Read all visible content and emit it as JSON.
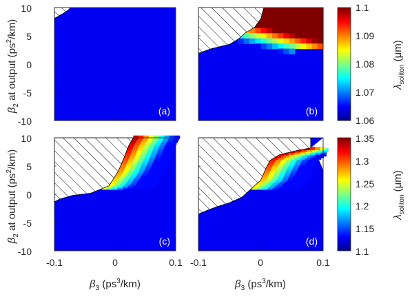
{
  "chart_data": [
    {
      "type": "heatmap",
      "panel_label": "(a)",
      "xlim": [
        -0.1,
        0.1
      ],
      "ylim": [
        -10,
        10
      ],
      "colorbar_range": [
        1.06,
        1.1
      ],
      "description_of_field": "nearly uniform 1.06 everywhere; small hatched region in the top-left corner",
      "hatched_boundary": [
        [
          -0.1,
          8.1
        ],
        [
          -0.093,
          8.5
        ],
        [
          -0.085,
          9.0
        ],
        [
          -0.078,
          9.5
        ],
        [
          -0.073,
          10.0
        ]
      ],
      "color_field": "flat",
      "base_value": 1.06
    },
    {
      "type": "heatmap",
      "panel_label": "(b)",
      "xlim": [
        -0.1,
        0.1
      ],
      "ylim": [
        -10,
        10
      ],
      "colorbar_range": [
        1.06,
        1.1
      ],
      "hatched_boundary": [
        [
          -0.1,
          1.9
        ],
        [
          -0.08,
          2.7
        ],
        [
          -0.05,
          3.5
        ],
        [
          -0.035,
          4.5
        ],
        [
          -0.025,
          5.5
        ],
        [
          -0.01,
          6.5
        ],
        [
          0.0,
          8.0
        ],
        [
          0.005,
          10.0
        ]
      ],
      "color_field": "wedge",
      "base_value": 1.06
    },
    {
      "type": "heatmap",
      "panel_label": "(c)",
      "xlim": [
        -0.1,
        0.1
      ],
      "ylim": [
        -10,
        10
      ],
      "colorbar_range": [
        1.1,
        1.35
      ],
      "hatched_boundary": [
        [
          -0.1,
          -1.3
        ],
        [
          -0.09,
          -0.8
        ],
        [
          -0.07,
          -0.2
        ],
        [
          -0.04,
          0.2
        ],
        [
          -0.01,
          1.5
        ],
        [
          0.005,
          4.0
        ],
        [
          0.015,
          6.5
        ],
        [
          0.022,
          8.5
        ],
        [
          0.03,
          10.0
        ]
      ],
      "outer_boundary": [
        [
          0.01,
          10.0
        ],
        [
          0.06,
          10.0
        ],
        [
          0.08,
          9.8
        ],
        [
          0.1,
          9.0
        ]
      ],
      "color_field": "band",
      "base_value": 1.1
    },
    {
      "type": "heatmap",
      "panel_label": "(d)",
      "xlim": [
        -0.1,
        0.1
      ],
      "ylim": [
        -10,
        10
      ],
      "colorbar_range": [
        1.1,
        1.35
      ],
      "hatched_boundary": [
        [
          -0.1,
          -3.5
        ],
        [
          -0.085,
          -2.8
        ],
        [
          -0.07,
          -2.2
        ],
        [
          -0.05,
          -1.5
        ],
        [
          -0.03,
          -0.5
        ],
        [
          -0.02,
          0.5
        ],
        [
          0.0,
          2.5
        ],
        [
          0.008,
          4.5
        ],
        [
          0.015,
          6.0
        ],
        [
          0.03,
          7.0
        ],
        [
          0.06,
          7.8
        ],
        [
          0.08,
          8.2
        ]
      ],
      "outer_boundary": [
        [
          0.05,
          8.0
        ],
        [
          0.07,
          8.3
        ],
        [
          0.09,
          7.0
        ],
        [
          0.1,
          4.3
        ]
      ],
      "color_field": "band",
      "base_value": 1.1
    }
  ],
  "axes": {
    "xlabel_prefix": "β",
    "xlabel_sub": "3",
    "xlabel_rest": " (ps",
    "xlabel_sup": "3",
    "xlabel_end": "/km)",
    "ylabel_prefix": "β",
    "ylabel_sub": "2",
    "ylabel_rest": " at output (ps",
    "ylabel_sup": "2",
    "ylabel_end": "/km)",
    "x_ticks": [
      "-0.1",
      "0",
      "0.1"
    ],
    "y_ticks": [
      "10",
      "5",
      "0",
      "-5",
      "-10"
    ]
  },
  "colorbars": [
    {
      "label_symbol": "λ",
      "label_sub": "soliton",
      "label_unit": " (μm)",
      "ticks": [
        "1.1",
        "1.09",
        "1.08",
        "1.07",
        "1.06"
      ]
    },
    {
      "label_symbol": "λ",
      "label_sub": "soliton",
      "label_unit": " (μm)",
      "ticks": [
        "1.35",
        "1.3",
        "1.25",
        "1.2",
        "1.15",
        "1.1"
      ]
    }
  ],
  "colors": {
    "jet": [
      "#00008f",
      "#0000ff",
      "#00ffff",
      "#ffff00",
      "#ff0000",
      "#800000"
    ],
    "axis": "#262626"
  }
}
